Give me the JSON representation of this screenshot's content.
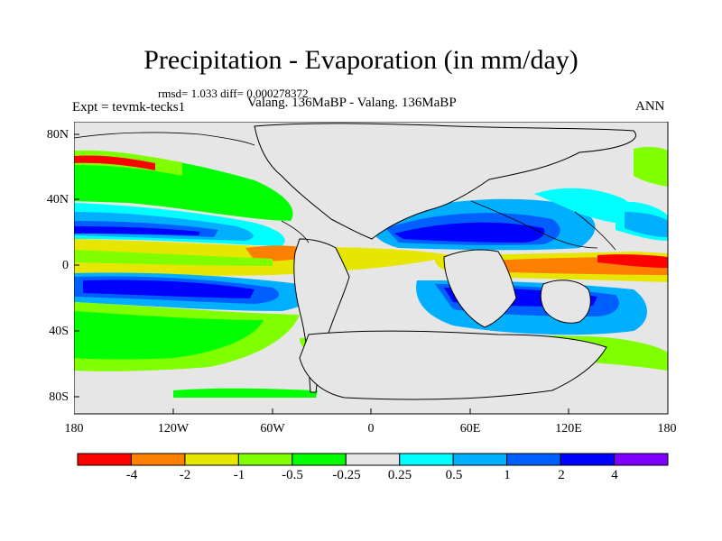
{
  "title": "Precipitation - Evaporation (in mm/day)",
  "stats": "rmsd= 1.033  diff= 0.000278372",
  "experiment": "Expt = tevmk-tecks1",
  "subtitle": "Valang. 136MaBP - Valang. 136MaBP",
  "season": "ANN",
  "map": {
    "lat_labels": [
      "80N",
      "40N",
      "0",
      "40S",
      "80S"
    ],
    "lon_labels": [
      "180",
      "120W",
      "60W",
      "0",
      "60E",
      "120E",
      "180"
    ],
    "background_color": "#e6e6e6"
  },
  "colorbar": {
    "colors": [
      "#ff0000",
      "#ff8000",
      "#e6e600",
      "#80ff00",
      "#00ff00",
      "#e6e6e6",
      "#00ffff",
      "#00b0ff",
      "#0060ff",
      "#0000ff",
      "#8000ff"
    ],
    "labels": [
      "-4",
      "-2",
      "-1",
      "-0.5",
      "-0.25",
      "0.25",
      "0.5",
      "1",
      "2",
      "4"
    ]
  }
}
